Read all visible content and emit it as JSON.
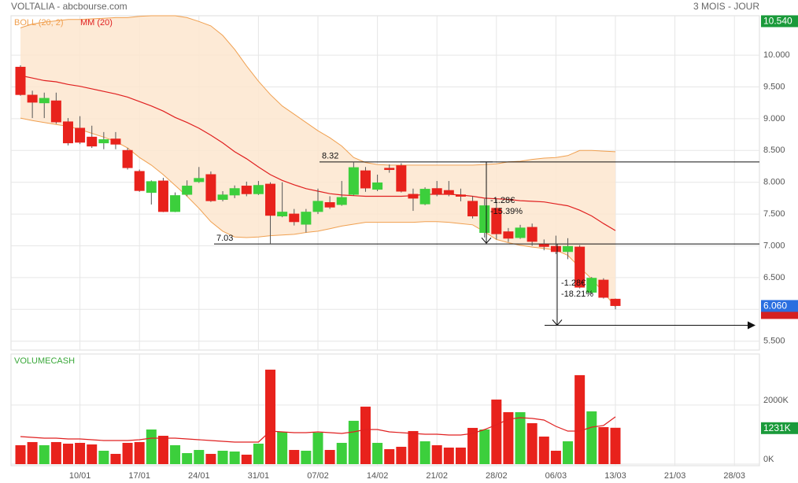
{
  "header": {
    "title": "VOLTALIA - abcbourse.com",
    "period": "3 MOIS - JOUR"
  },
  "chart_data": {
    "type": "candlestick",
    "up_color": "#3ccf3c",
    "down_color": "#e8221c",
    "categories": [
      null,
      null,
      null,
      null,
      null,
      "10/01",
      null,
      null,
      null,
      null,
      "17/01",
      null,
      null,
      null,
      null,
      "24/01",
      null,
      null,
      null,
      null,
      "31/01",
      null,
      null,
      null,
      null,
      "07/02",
      null,
      null,
      null,
      null,
      "14/02",
      null,
      null,
      null,
      null,
      "21/02",
      null,
      null,
      null,
      null,
      "28/02",
      null,
      null,
      null,
      null,
      "06/03",
      null,
      null,
      null,
      null,
      "13/03",
      null,
      null,
      null,
      null,
      "21/03",
      null,
      null,
      null,
      null,
      "28/03"
    ],
    "open": [
      9.81,
      9.37,
      9.25,
      9.28,
      8.95,
      8.85,
      8.71,
      8.62,
      8.68,
      8.5,
      8.17,
      7.84,
      8.02,
      7.54,
      7.81,
      8.01,
      8.12,
      7.73,
      7.8,
      7.94,
      7.82,
      7.97,
      7.47,
      7.5,
      7.34,
      7.54,
      7.68,
      7.65,
      7.81,
      8.18,
      7.89,
      8.22,
      8.26,
      7.81,
      7.66,
      7.9,
      7.87,
      7.8,
      7.7,
      7.21,
      7.59,
      7.22,
      7.13,
      7.29,
      7.02,
      6.99,
      6.91,
      6.98,
      6.27,
      6.46,
      6.16,
      null,
      null,
      null,
      null,
      null,
      null,
      null,
      null,
      null,
      null
    ],
    "high": [
      9.84,
      9.44,
      9.41,
      9.41,
      9.01,
      9.04,
      8.89,
      8.79,
      8.79,
      8.54,
      8.2,
      8.03,
      8.07,
      7.84,
      8.03,
      8.24,
      8.17,
      7.86,
      7.95,
      8.01,
      8.02,
      8.0,
      8.0,
      7.58,
      7.58,
      7.9,
      7.78,
      8.02,
      8.32,
      8.24,
      8.12,
      8.28,
      8.3,
      7.9,
      7.92,
      8.02,
      8.02,
      7.9,
      7.78,
      7.74,
      7.74,
      7.28,
      7.33,
      7.35,
      7.1,
      7.16,
      7.12,
      7.01,
      6.51,
      6.49,
      6.17,
      null,
      null,
      null,
      null,
      null,
      null,
      null,
      null,
      null,
      null
    ],
    "low": [
      9.36,
      9.01,
      9.01,
      8.92,
      8.58,
      8.6,
      8.54,
      8.52,
      8.52,
      8.2,
      7.85,
      7.65,
      7.53,
      7.53,
      7.78,
      7.99,
      7.69,
      7.7,
      7.75,
      7.78,
      7.8,
      7.03,
      7.45,
      7.32,
      7.21,
      7.5,
      7.58,
      7.63,
      7.79,
      7.85,
      7.86,
      8.15,
      7.84,
      7.55,
      7.64,
      7.78,
      7.78,
      7.7,
      7.43,
      7.13,
      7.1,
      7.06,
      7.11,
      7.0,
      6.93,
      6.87,
      6.79,
      6.33,
      6.24,
      6.17,
      6.0,
      null,
      null,
      null,
      null,
      null,
      null,
      null,
      null,
      null,
      null
    ],
    "close": [
      9.38,
      9.26,
      9.32,
      8.95,
      8.62,
      8.63,
      8.57,
      8.67,
      8.6,
      8.23,
      7.87,
      8.01,
      7.54,
      7.79,
      7.94,
      8.06,
      7.71,
      7.8,
      7.9,
      7.82,
      7.95,
      7.48,
      7.53,
      7.38,
      7.53,
      7.7,
      7.61,
      7.76,
      8.23,
      7.91,
      7.99,
      8.2,
      7.86,
      7.75,
      7.89,
      7.82,
      7.81,
      7.78,
      7.47,
      7.63,
      7.19,
      7.12,
      7.28,
      7.07,
      6.99,
      6.91,
      6.99,
      6.35,
      6.49,
      6.19,
      6.06,
      null,
      null,
      null,
      null,
      null,
      null,
      null,
      null,
      null,
      null
    ],
    "ma": {
      "name": "MM (20)",
      "color": "#e02020",
      "values": [
        9.68,
        9.64,
        9.6,
        9.58,
        9.54,
        9.51,
        9.47,
        9.43,
        9.39,
        9.34,
        9.27,
        9.2,
        9.12,
        9.02,
        8.94,
        8.85,
        8.74,
        8.62,
        8.48,
        8.37,
        8.24,
        8.12,
        8.03,
        7.96,
        7.9,
        7.86,
        7.82,
        7.8,
        7.79,
        7.78,
        7.78,
        7.78,
        7.78,
        7.79,
        7.81,
        7.81,
        7.81,
        7.8,
        7.78,
        7.75,
        7.74,
        7.73,
        7.71,
        7.7,
        7.69,
        7.66,
        7.63,
        7.56,
        7.47,
        7.35,
        7.24,
        null,
        null,
        null,
        null,
        null,
        null,
        null,
        null,
        null,
        null
      ]
    },
    "bollinger": {
      "name": "BOLL (20, 2)",
      "color": "#f0a050",
      "fill": "#fde6cf",
      "upper": [
        10.43,
        10.49,
        10.52,
        10.54,
        10.56,
        10.56,
        10.57,
        10.58,
        10.59,
        10.59,
        10.61,
        10.62,
        10.62,
        10.62,
        10.59,
        10.53,
        10.46,
        10.31,
        10.09,
        9.83,
        9.59,
        9.38,
        9.2,
        9.07,
        8.94,
        8.81,
        8.7,
        8.57,
        8.39,
        8.31,
        8.28,
        8.27,
        8.27,
        8.27,
        8.27,
        8.27,
        8.27,
        8.27,
        8.27,
        8.28,
        8.29,
        8.32,
        8.33,
        8.36,
        8.38,
        8.39,
        8.42,
        8.5,
        8.5,
        8.49,
        8.48,
        null,
        null,
        null,
        null,
        null,
        null,
        null,
        null,
        null,
        null
      ],
      "lower": [
        9.01,
        8.97,
        8.94,
        8.91,
        8.88,
        8.83,
        8.77,
        8.71,
        8.64,
        8.54,
        8.39,
        8.27,
        8.12,
        7.95,
        7.78,
        7.59,
        7.38,
        7.23,
        7.14,
        7.13,
        7.14,
        7.16,
        7.17,
        7.18,
        7.21,
        7.23,
        7.27,
        7.31,
        7.34,
        7.37,
        7.37,
        7.37,
        7.37,
        7.37,
        7.38,
        7.38,
        7.37,
        7.35,
        7.33,
        7.22,
        7.1,
        7.05,
        7.01,
        6.98,
        6.96,
        6.93,
        6.85,
        6.66,
        6.48,
        6.27,
        6.04,
        null,
        null,
        null,
        null,
        null,
        null,
        null,
        null,
        null,
        null
      ]
    },
    "ylim": [
      5.36,
      10.62
    ],
    "yticks": [
      {
        "value": 10,
        "label": "10.000"
      },
      {
        "value": 9.5,
        "label": "9.500"
      },
      {
        "value": 9,
        "label": "9.000"
      },
      {
        "value": 8.5,
        "label": "8.500"
      },
      {
        "value": 8,
        "label": "8.000"
      },
      {
        "value": 7.5,
        "label": "7.500"
      },
      {
        "value": 7,
        "label": "7.000"
      },
      {
        "value": 6.5,
        "label": "6.500"
      },
      {
        "value": 6,
        "label": "6.000"
      },
      {
        "value": 5.5,
        "label": "5.500"
      }
    ],
    "grid": true,
    "price_labels": [
      {
        "value": 10.54,
        "label": "10.540",
        "color": "#1a9a3a"
      },
      {
        "value": 6.06,
        "label": "6.060",
        "color": "#2a6fe0"
      }
    ],
    "levels": [
      {
        "value": 8.32,
        "label": "8.32"
      },
      {
        "value": 7.03,
        "label": "7.03"
      }
    ],
    "measures": [
      {
        "from": 8.32,
        "change": -1.28,
        "change_label": "-1.28€",
        "pct": -15.39,
        "pct_label": "-15.39%"
      },
      {
        "from": 7.03,
        "change": -1.28,
        "change_label": "-1.28€",
        "pct": -18.21,
        "pct_label": "-18.21%"
      }
    ],
    "volume": {
      "title": "VOLUMECASH",
      "title_color": "#3aa83a",
      "values": [
        640,
        747,
        640,
        747,
        693,
        720,
        667,
        453,
        347,
        720,
        747,
        1173,
        960,
        640,
        373,
        480,
        347,
        453,
        427,
        320,
        693,
        3200,
        1093,
        480,
        453,
        1067,
        480,
        720,
        1467,
        1947,
        720,
        507,
        587,
        1120,
        773,
        640,
        560,
        560,
        1227,
        1173,
        2187,
        1760,
        1760,
        1387,
        933,
        453,
        773,
        3013,
        1787,
        1253,
        1231,
        null,
        null,
        null,
        null,
        null,
        null,
        null,
        null,
        null,
        null
      ],
      "ma": {
        "color": "#e02020",
        "values": [
          933,
          907,
          880,
          880,
          853,
          853,
          827,
          800,
          800,
          800,
          827,
          880,
          880,
          880,
          853,
          827,
          800,
          773,
          747,
          747,
          747,
          1120,
          1093,
          1067,
          1067,
          1093,
          1067,
          1040,
          1093,
          1173,
          1173,
          1093,
          1067,
          1040,
          1013,
          1013,
          987,
          987,
          1040,
          1173,
          1333,
          1520,
          1573,
          1547,
          1493,
          1280,
          1120,
          1120,
          1253,
          1307,
          1600,
          null,
          null,
          null,
          null,
          null,
          null,
          null,
          null,
          null,
          null
        ]
      },
      "ylim": [
        0,
        3730
      ],
      "yticks": [
        {
          "value": 0,
          "label": "0K"
        },
        {
          "value": 2000,
          "label": "2000K"
        }
      ],
      "last_label": {
        "value": 1231,
        "label": "1231K",
        "color": "#1a9a3a"
      }
    }
  }
}
